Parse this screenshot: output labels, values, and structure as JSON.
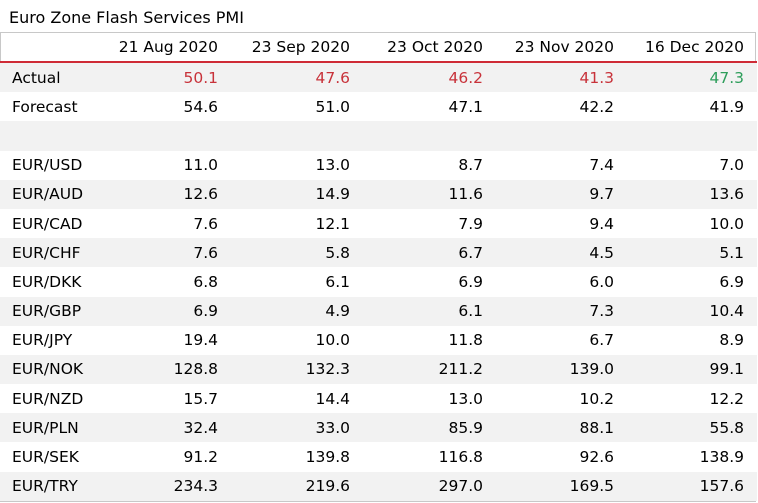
{
  "title": "Euro Zone Flash Services PMI",
  "colors": {
    "below": "#c8323a",
    "above": "#2e9e5b",
    "header_rule": "#cf2b36"
  },
  "columns": [
    "21 Aug 2020",
    "23 Sep 2020",
    "23 Oct 2020",
    "23 Nov 2020",
    "16 Dec 2020"
  ],
  "actual": {
    "label": "Actual",
    "values": [
      "50.1",
      "47.6",
      "46.2",
      "41.3",
      "47.3"
    ]
  },
  "forecast": {
    "label": "Forecast",
    "values": [
      "54.6",
      "51.0",
      "47.1",
      "42.2",
      "41.9"
    ]
  },
  "pairs": [
    {
      "label": "EUR/USD",
      "values": [
        "11.0",
        "13.0",
        "8.7",
        "7.4",
        "7.0"
      ]
    },
    {
      "label": "EUR/AUD",
      "values": [
        "12.6",
        "14.9",
        "11.6",
        "9.7",
        "13.6"
      ]
    },
    {
      "label": "EUR/CAD",
      "values": [
        "7.6",
        "12.1",
        "7.9",
        "9.4",
        "10.0"
      ]
    },
    {
      "label": "EUR/CHF",
      "values": [
        "7.6",
        "5.8",
        "6.7",
        "4.5",
        "5.1"
      ]
    },
    {
      "label": "EUR/DKK",
      "values": [
        "6.8",
        "6.1",
        "6.9",
        "6.0",
        "6.9"
      ]
    },
    {
      "label": "EUR/GBP",
      "values": [
        "6.9",
        "4.9",
        "6.1",
        "7.3",
        "10.4"
      ]
    },
    {
      "label": "EUR/JPY",
      "values": [
        "19.4",
        "10.0",
        "11.8",
        "6.7",
        "8.9"
      ]
    },
    {
      "label": "EUR/NOK",
      "values": [
        "128.8",
        "132.3",
        "211.2",
        "139.0",
        "99.1"
      ]
    },
    {
      "label": "EUR/NZD",
      "values": [
        "15.7",
        "14.4",
        "13.0",
        "10.2",
        "12.2"
      ]
    },
    {
      "label": "EUR/PLN",
      "values": [
        "32.4",
        "33.0",
        "85.9",
        "88.1",
        "55.8"
      ]
    },
    {
      "label": "EUR/SEK",
      "values": [
        "91.2",
        "139.8",
        "116.8",
        "92.6",
        "138.9"
      ]
    },
    {
      "label": "EUR/TRY",
      "values": [
        "234.3",
        "219.6",
        "297.0",
        "169.5",
        "157.6"
      ]
    }
  ]
}
